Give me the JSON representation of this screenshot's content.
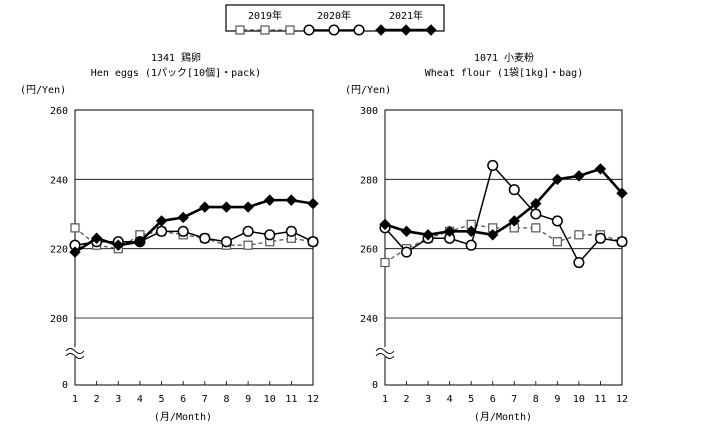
{
  "legend": {
    "entries": [
      {
        "name": "2019年",
        "marker": "square-open",
        "dash": true
      },
      {
        "name": "2020年",
        "marker": "circle-open",
        "dash": false
      },
      {
        "name": "2021年",
        "marker": "diamond-filled",
        "dash": false
      }
    ]
  },
  "chart_data": [
    {
      "type": "line",
      "title": "1341 鶏卵",
      "subtitle": "Hen eggs (1パック[10個]・pack)",
      "ylabel": "(円/Yen)",
      "xlabel": "(月/Month)",
      "x": [
        1,
        2,
        3,
        4,
        5,
        6,
        7,
        8,
        9,
        10,
        11,
        12
      ],
      "ylim": [
        200,
        260
      ],
      "yticks": [
        200,
        220,
        240,
        260
      ],
      "axis_break_label": "0",
      "grid": true,
      "series": [
        {
          "name": "2019年",
          "values": [
            226,
            221,
            220,
            224,
            225,
            224,
            223,
            221,
            221,
            222,
            223,
            222
          ]
        },
        {
          "name": "2020年",
          "values": [
            221,
            222,
            222,
            222,
            225,
            225,
            223,
            222,
            225,
            224,
            225,
            222
          ]
        },
        {
          "name": "2021年",
          "values": [
            219,
            223,
            221,
            222,
            228,
            229,
            232,
            232,
            232,
            234,
            234,
            233
          ]
        }
      ]
    },
    {
      "type": "line",
      "title": "1071 小麦粉",
      "subtitle": "Wheat flour (1袋[1kg]・bag)",
      "ylabel": "(円/Yen)",
      "xlabel": "(月/Month)",
      "x": [
        1,
        2,
        3,
        4,
        5,
        6,
        7,
        8,
        9,
        10,
        11,
        12
      ],
      "ylim": [
        240,
        300
      ],
      "yticks": [
        240,
        260,
        280,
        300
      ],
      "axis_break_label": "0",
      "grid": true,
      "series": [
        {
          "name": "2019年",
          "values": [
            256,
            260,
            263,
            265,
            267,
            266,
            266,
            266,
            262,
            264,
            264,
            262
          ]
        },
        {
          "name": "2020年",
          "values": [
            266,
            259,
            263,
            263,
            261,
            284,
            277,
            270,
            268,
            256,
            263,
            262
          ]
        },
        {
          "name": "2021年",
          "values": [
            267,
            265,
            264,
            265,
            265,
            264,
            268,
            273,
            280,
            281,
            283,
            276
          ]
        }
      ]
    }
  ]
}
